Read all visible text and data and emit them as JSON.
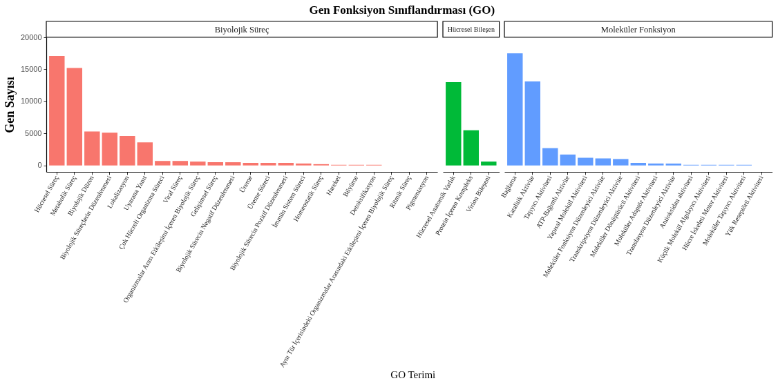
{
  "chart_data": [
    {
      "type": "bar",
      "title": "Gen Fonksiyon Sınıflandırması (GO)",
      "subtitle": "Biyolojik Süreç",
      "xlabel": "GO Terimi",
      "ylabel": "Gen Sayısı",
      "categories": [
        "Hücresel Süreç",
        "Metabolik Süreç",
        "Biyolojik Düzen",
        "Biyolojik Süreçlerin Düzenlenmesi",
        "Lokalizasyon",
        "Uyarana Yanıt",
        "Çok Hücreli Organizma Süreci",
        "Viral Süreç",
        "Organizmalar Arası Etkileşimi İçeren Biyolojik Süreç",
        "Gelişimsel Süreç",
        "Biyolojik Sürecin Negatif Düzenlenmesi",
        "Üreme",
        "Üreme Süreci",
        "Biyolojik Sürecin Pozitif Düzenlenmesi",
        "İmmün Sistem Süreci",
        "Homeostatik Süreç",
        "Hareket",
        "Büyüme",
        "Detoksifikasyon",
        "Aynı Tür İçerisindeki Organizmalar Arasındaki Etkileşimi İçeren Biyolojik Süreç",
        "Ritmik Süreç",
        "Pigmentasyon"
      ],
      "values": [
        17100,
        15200,
        5300,
        5100,
        4600,
        3600,
        700,
        700,
        600,
        500,
        500,
        400,
        400,
        400,
        300,
        200,
        100,
        100,
        100,
        0,
        0,
        0
      ],
      "color": "#f8766d",
      "ylim": [
        -1000,
        20000
      ],
      "yticks": [
        0,
        5000,
        10000,
        15000,
        20000
      ]
    },
    {
      "type": "bar",
      "subtitle": "Hücresel Bileşen",
      "categories": [
        "Hücresel Anatomik Varlık",
        "Protein İçeren Kompleks",
        "Virion Bileşeni"
      ],
      "values": [
        13000,
        5500,
        600
      ],
      "color": "#00ba38",
      "ylim": [
        -1000,
        20000
      ],
      "tick_labels": "x"
    },
    {
      "type": "bar",
      "subtitle": "Moleküler Fonksiyon",
      "categories": [
        "Bağlama",
        "Katalitik Aktivite",
        "Taşıyıcı Aktivitesi",
        "ATP-Bağımlı Aktivite",
        "Yapısal Molekül Aktivitesi",
        "Moleküler Fonksiyon Düzenleyici Aktivite",
        "Transkripsiyon Düzenleyici Aktivite",
        "Moleküler Dönüştürücü Aktivitesi",
        "Moleküler Adaptör Aktivitesi",
        "Translasyon Düzenleyici Aktivite",
        "Antioksidan aktivitesi",
        "Küçük Molekül Algılayıcı Aktivitesi",
        "Hücre İskeleti Motor Aktivitesi",
        "Moleküler Taşıyıcı Aktivitesi",
        "Yük Reseptörü Aktivitesi"
      ],
      "values": [
        17500,
        13100,
        2700,
        1700,
        1200,
        1100,
        1000,
        400,
        300,
        300,
        100,
        100,
        100,
        100,
        0
      ],
      "color": "#619cff",
      "ylim": [
        -1000,
        20000
      ],
      "tick_labels": "x"
    }
  ]
}
